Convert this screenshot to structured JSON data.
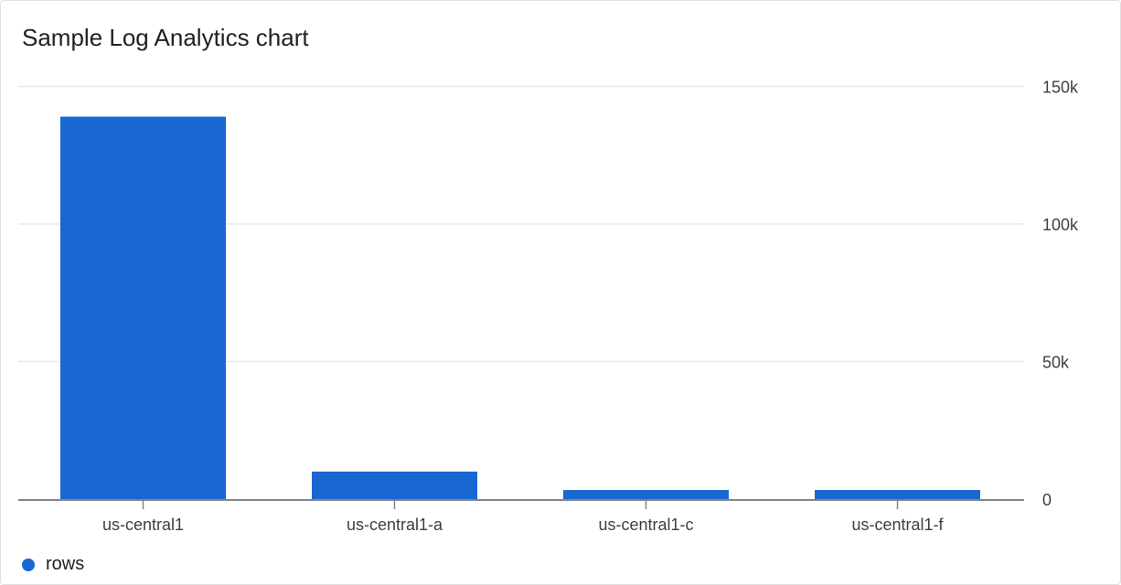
{
  "chart_data": {
    "type": "bar",
    "title": "Sample Log Analytics chart",
    "categories": [
      "us-central1",
      "us-central1-a",
      "us-central1-c",
      "us-central1-f"
    ],
    "series": [
      {
        "name": "rows",
        "values": [
          139000,
          10000,
          3300,
          3300
        ],
        "color": "#1967d2"
      }
    ],
    "ylim": [
      0,
      150000
    ],
    "yticks": [
      0,
      50000,
      100000,
      150000
    ],
    "ytick_labels": [
      "0",
      "50k",
      "100k",
      "150k"
    ],
    "yaxis_side": "right",
    "grid": true,
    "legend": "bottom-left"
  }
}
